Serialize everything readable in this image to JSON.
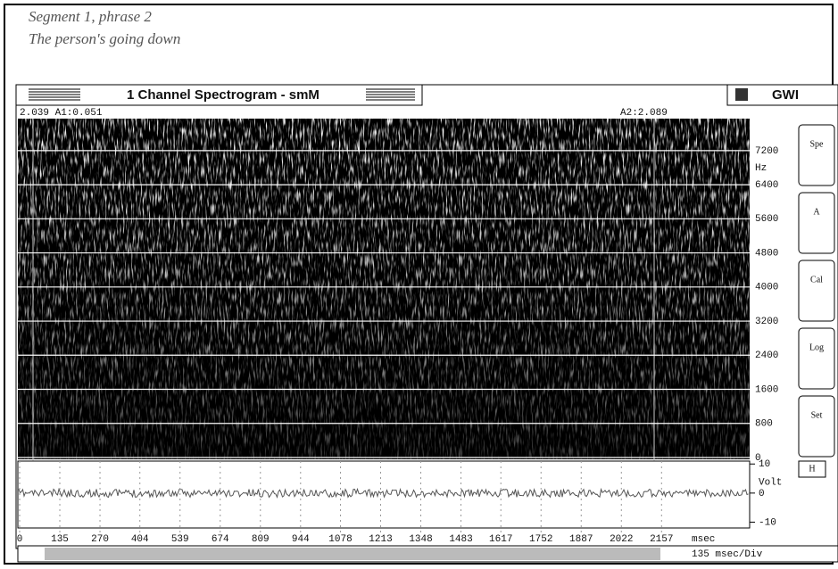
{
  "notes": [
    "Segment 1, phrase 2",
    "The person's going down"
  ],
  "window": {
    "title": "1 Channel Spectrogram - smM",
    "badge": "GWI",
    "readout_left": "2.039 A1:0.051",
    "readout_right": "A2:2.089"
  },
  "spectrogram": {
    "unit": "Hz",
    "ylim": [
      0,
      7950
    ],
    "yticks": [
      0,
      800,
      1600,
      2400,
      3200,
      4000,
      4800,
      5600,
      6400,
      7200
    ]
  },
  "buttons": [
    "Spe",
    "A",
    "Cal",
    "Log",
    "Set"
  ],
  "waveform": {
    "unit": "Volt",
    "ylim": [
      -12,
      11
    ],
    "yticks": [
      -10,
      0,
      10
    ],
    "button": "H"
  },
  "time_axis": {
    "unit": "msec",
    "xlim": [
      0,
      2453
    ],
    "xticks": [
      0,
      135,
      270,
      404,
      539,
      674,
      809,
      944,
      1078,
      1213,
      1348,
      1483,
      1617,
      1752,
      1887,
      2022,
      2157
    ],
    "scale": "135 msec/Div"
  }
}
